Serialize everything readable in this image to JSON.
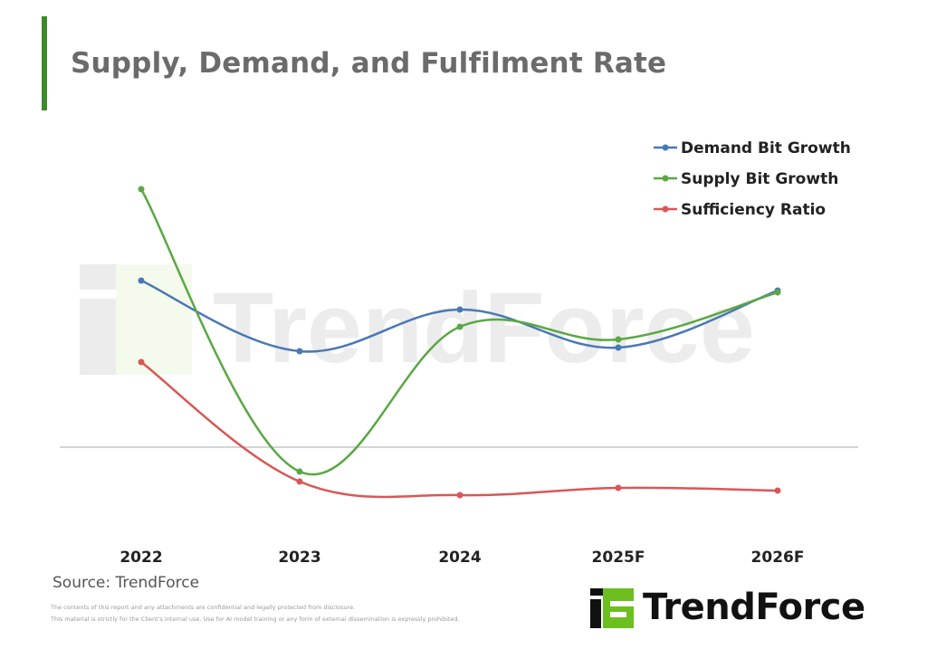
{
  "chart_data": {
    "type": "line",
    "title": "Supply, Demand, and Fulfilment Rate",
    "xlabel": "",
    "ylabel": "",
    "categories": [
      "2022",
      "2023",
      "2024",
      "2025F",
      "2026F"
    ],
    "ylim": [
      -10,
      30
    ],
    "grid": false,
    "legend_position": "top-right",
    "y_axis_note": "no y-axis scale shown; values are relative estimates with 0 at the horizontal axis line",
    "series": [
      {
        "name": "Demand Bit Growth",
        "color": "#4a78b5",
        "values": [
          18.4,
          10.6,
          15.2,
          11.0,
          17.3
        ]
      },
      {
        "name": "Supply Bit Growth",
        "color": "#5aa843",
        "values": [
          28.5,
          -2.7,
          13.3,
          11.9,
          17.1
        ]
      },
      {
        "name": "Sufficiency Ratio",
        "color": "#d95757",
        "values": [
          9.4,
          -3.8,
          -5.3,
          -4.5,
          -4.8
        ]
      }
    ]
  },
  "source": "Source: TrendForce",
  "disclaimer": [
    "The contents of this report and any attachments are confidential and legally protected from disclosure.",
    "This material is strictly for the Client's internal use. Use for AI model training or any form of external dissemination is expressly prohibited."
  ],
  "logo_text": "TrendForce",
  "watermark_text": "TrendForce"
}
